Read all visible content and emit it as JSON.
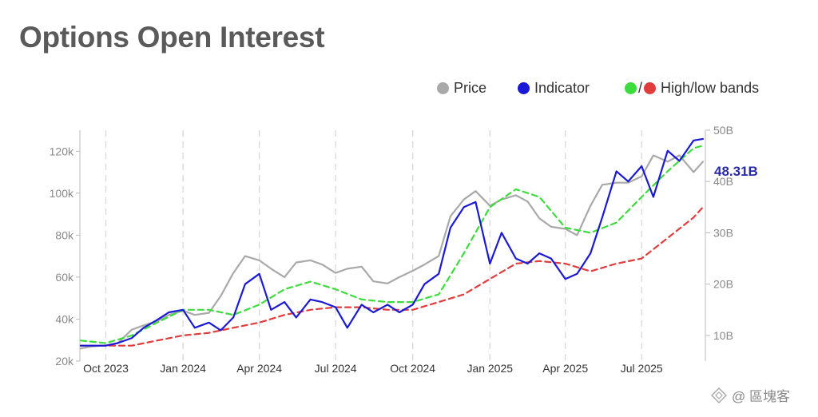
{
  "title": "Options Open Interest",
  "legend": {
    "price": {
      "label": "Price",
      "color": "#a9a9a9"
    },
    "indicator": {
      "label": "Indicator",
      "color": "#1a1ad6"
    },
    "bands": {
      "label": "High/low bands",
      "high_color": "#3ddc3d",
      "low_color": "#e03c3c"
    }
  },
  "latest_value_label": "48.31B",
  "watermark": "@ 區塊客",
  "chart_data": {
    "type": "line",
    "x_ticks": [
      "Oct 2023",
      "Jan 2024",
      "Apr 2024",
      "Jul 2024",
      "Oct 2024",
      "Jan 2025",
      "Apr 2025",
      "Jul 2025"
    ],
    "x_range": [
      "2023-08-31",
      "2025-09-15"
    ],
    "y_left": {
      "label": "",
      "ticks": [
        "20k",
        "40k",
        "60k",
        "80k",
        "100k",
        "120k"
      ],
      "range": [
        20000,
        130000
      ]
    },
    "y_right": {
      "label": "",
      "ticks": [
        "10B",
        "20B",
        "30B",
        "40B",
        "50B"
      ],
      "range": [
        5,
        50
      ]
    },
    "grid": "vertical dashed",
    "series": [
      {
        "name": "Price",
        "axis": "left",
        "color": "#a9a9a9",
        "x": [
          "2023-09-01",
          "2023-09-15",
          "2023-10-01",
          "2023-10-15",
          "2023-11-01",
          "2023-11-15",
          "2023-12-01",
          "2023-12-15",
          "2024-01-01",
          "2024-01-15",
          "2024-02-01",
          "2024-02-15",
          "2024-03-01",
          "2024-03-15",
          "2024-04-01",
          "2024-04-15",
          "2024-05-01",
          "2024-05-15",
          "2024-06-01",
          "2024-06-15",
          "2024-07-01",
          "2024-07-15",
          "2024-08-01",
          "2024-08-15",
          "2024-09-01",
          "2024-09-15",
          "2024-10-01",
          "2024-10-15",
          "2024-11-01",
          "2024-11-15",
          "2024-12-01",
          "2024-12-15",
          "2025-01-01",
          "2025-01-15",
          "2025-02-01",
          "2025-02-15",
          "2025-03-01",
          "2025-03-15",
          "2025-04-01",
          "2025-04-15",
          "2025-05-01",
          "2025-05-15",
          "2025-06-01",
          "2025-06-15",
          "2025-07-01",
          "2025-07-15",
          "2025-08-01",
          "2025-08-15",
          "2025-09-01",
          "2025-09-12"
        ],
        "values": [
          26000,
          27000,
          27500,
          28500,
          35000,
          37000,
          39000,
          42000,
          44000,
          42000,
          43000,
          51000,
          62000,
          70000,
          68000,
          64000,
          60000,
          67000,
          68000,
          66000,
          62000,
          64000,
          65000,
          58000,
          57000,
          60000,
          63000,
          66000,
          70000,
          89000,
          97000,
          101000,
          94000,
          97000,
          99000,
          96000,
          88000,
          84000,
          83000,
          80000,
          94000,
          104000,
          105000,
          105000,
          108000,
          118000,
          115000,
          118000,
          110000,
          115000
        ]
      },
      {
        "name": "Indicator",
        "axis": "right",
        "color": "#1a1ad6",
        "x": [
          "2023-09-01",
          "2023-09-15",
          "2023-10-01",
          "2023-10-15",
          "2023-11-01",
          "2023-11-15",
          "2023-12-01",
          "2023-12-15",
          "2024-01-01",
          "2024-01-15",
          "2024-02-01",
          "2024-02-15",
          "2024-03-01",
          "2024-03-15",
          "2024-04-01",
          "2024-04-15",
          "2024-05-01",
          "2024-05-15",
          "2024-06-01",
          "2024-06-15",
          "2024-07-01",
          "2024-07-15",
          "2024-08-01",
          "2024-08-15",
          "2024-09-01",
          "2024-09-15",
          "2024-10-01",
          "2024-10-15",
          "2024-11-01",
          "2024-11-15",
          "2024-12-01",
          "2024-12-15",
          "2025-01-01",
          "2025-01-15",
          "2025-02-01",
          "2025-02-15",
          "2025-03-01",
          "2025-03-15",
          "2025-04-01",
          "2025-04-15",
          "2025-05-01",
          "2025-05-15",
          "2025-06-01",
          "2025-06-15",
          "2025-07-01",
          "2025-07-15",
          "2025-08-01",
          "2025-08-15",
          "2025-09-01",
          "2025-09-12"
        ],
        "values": [
          8,
          8,
          8,
          8.5,
          9.5,
          11.5,
          13,
          14.5,
          15,
          11.5,
          12.5,
          11,
          13.5,
          20,
          22,
          15,
          16.5,
          13.5,
          17,
          16.5,
          15.5,
          11.5,
          16,
          14.5,
          16,
          14.5,
          16,
          20,
          22,
          31,
          35,
          36,
          24,
          30,
          25,
          24,
          26,
          25,
          21,
          22,
          26,
          33,
          42,
          40,
          43,
          37,
          46,
          44,
          48,
          48.31
        ]
      },
      {
        "name": "High band",
        "axis": "right",
        "color": "#3ddc3d",
        "x": [
          "2023-09-01",
          "2023-10-01",
          "2023-11-01",
          "2023-12-01",
          "2024-01-01",
          "2024-02-01",
          "2024-03-01",
          "2024-04-01",
          "2024-05-01",
          "2024-06-01",
          "2024-07-01",
          "2024-08-01",
          "2024-09-01",
          "2024-10-01",
          "2024-11-01",
          "2024-12-01",
          "2025-01-01",
          "2025-02-01",
          "2025-03-01",
          "2025-04-01",
          "2025-05-01",
          "2025-06-01",
          "2025-07-01",
          "2025-08-01",
          "2025-09-01",
          "2025-09-12"
        ],
        "values": [
          9,
          8.5,
          10,
          12.5,
          15,
          15,
          14,
          16,
          19,
          20.5,
          19,
          17,
          16.5,
          16.5,
          18,
          26,
          35,
          38.5,
          37,
          31,
          30,
          32,
          37,
          42,
          46.5,
          47
        ]
      },
      {
        "name": "Low band",
        "axis": "right",
        "color": "#e03c3c",
        "x": [
          "2023-09-01",
          "2023-10-01",
          "2023-11-01",
          "2023-12-01",
          "2024-01-01",
          "2024-02-01",
          "2024-03-01",
          "2024-04-01",
          "2024-05-01",
          "2024-06-01",
          "2024-07-01",
          "2024-08-01",
          "2024-09-01",
          "2024-10-01",
          "2024-11-01",
          "2024-12-01",
          "2025-01-01",
          "2025-02-01",
          "2025-03-01",
          "2025-04-01",
          "2025-05-01",
          "2025-06-01",
          "2025-07-01",
          "2025-08-01",
          "2025-09-01",
          "2025-09-12"
        ],
        "values": [
          8,
          8,
          8,
          9,
          10,
          10.5,
          11.5,
          12.5,
          14,
          15,
          15.5,
          15.5,
          15,
          15,
          16.5,
          18,
          21,
          24,
          24.5,
          24,
          22.5,
          24,
          25,
          29,
          33,
          35
        ]
      }
    ]
  }
}
